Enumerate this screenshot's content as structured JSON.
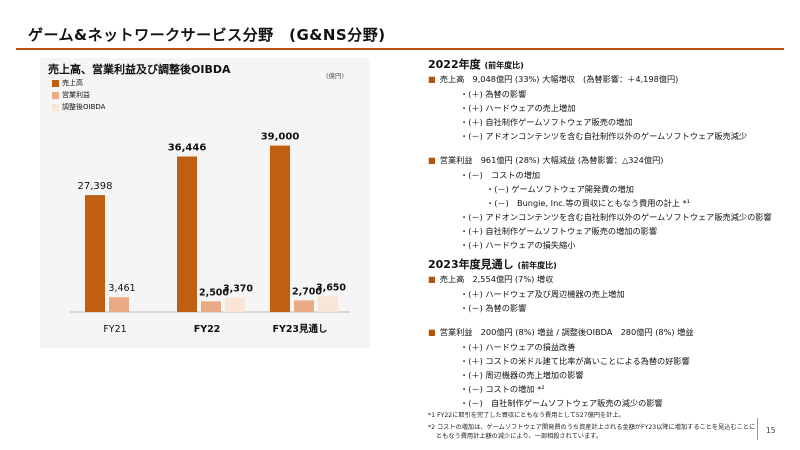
{
  "title": "ゲーム&ネットワークサービス分野　(G&NS分野)",
  "chart_data": {
    "type": "bar",
    "title": "売上高、営業利益及び調整後OIBDA",
    "unit": "(億円)",
    "categories": [
      "FY21",
      "FY22",
      "FY23見通し"
    ],
    "series": [
      {
        "name": "売上高",
        "color": "#c05f12",
        "values": [
          27398,
          36446,
          39000
        ],
        "labels": [
          "27,398",
          "36,446",
          "39,000"
        ]
      },
      {
        "name": "営業利益",
        "color": "#e8ab86",
        "values": [
          3461,
          2500,
          2700
        ],
        "labels": [
          "3,461",
          "2,500",
          "2,700"
        ]
      },
      {
        "name": "調整後OIBDA",
        "color": "#f8e5d8",
        "values": [
          null,
          3370,
          3650
        ],
        "labels": [
          "",
          "3,370",
          "3,650"
        ]
      }
    ],
    "ylim": [
      0,
      45000
    ],
    "grid": false,
    "legend": "top-left"
  },
  "right": {
    "s2022": {
      "head": "2022年度",
      "note": "(前年度比)"
    },
    "b1": "売上高　9,048億円 (33%) 大幅増収　(為替影響：＋4,198億円)",
    "b1_items": [
      "・(＋) 為替の影響",
      "・(＋) ハードウェアの売上増加",
      "・(＋) 自社制作ゲームソフトウェア販売の増加",
      "・(－) アドオンコンテンツを含む自社制作以外のゲームソフトウェア販売減少"
    ],
    "b2": "営業利益　961億円 (28%) 大幅減益 (為替影響：△324億円)",
    "b2_items": [
      "・(－)　コストの増加",
      "・(－) ゲームソフトウェア開発費の増加",
      "・(－)　Bungie, Inc.等の買収にともなう費用の計上 *¹",
      "・(－) アドオンコンテンツを含む自社制作以外のゲームソフトウェア販売減少の影響",
      "・(＋) 自社制作ゲームソフトウェア販売の増加の影響",
      "・(＋) ハードウェアの損失縮小"
    ],
    "s2023": {
      "head": "2023年度見通し",
      "note": "(前年度比)"
    },
    "b3": "売上高　2,554億円 (7%) 増収",
    "b3_items": [
      "・(＋) ハードウェア及び周辺機器の売上増加",
      "・(－) 為替の影響"
    ],
    "b4": "営業利益　200億円 (8%) 増益 / 調整後OIBDA　280億円 (8%) 増益",
    "b4_items": [
      "・(＋) ハードウェアの損益改善",
      "・(＋) コストの米ドル建て比率が高いことによる為替の好影響",
      "・(＋) 周辺機器の売上増加の影響",
      "・(－) コストの増加 *²",
      "・(－)　自社制作ゲームソフトウェア販売の減少の影響"
    ],
    "fn1": "*1 FY22に取引を完了した買収にともなう費用として527億円を計上。",
    "fn2a": "*2 コストの増加は、ゲームソフトウェア開発費のうち資産計上される金額がFY23以降に増加することを見込むことに",
    "fn2b": "ともなう費用計上額の減少により、一部相殺されています。"
  },
  "page_number": "15"
}
